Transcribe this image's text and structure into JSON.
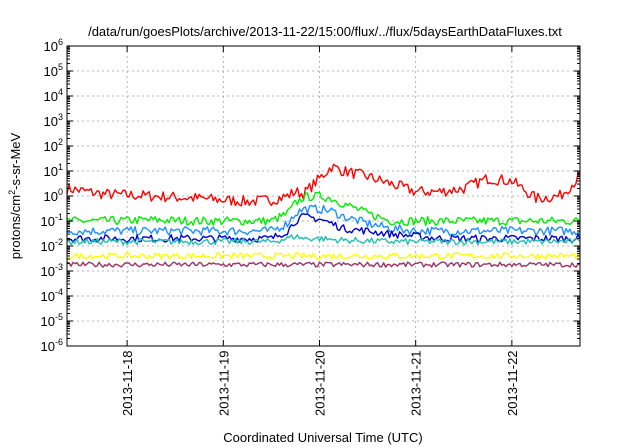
{
  "chart_data": {
    "type": "line",
    "title": "/data/run/goesPlots/archive/2013-11-22/15:00/flux/../flux/5daysEarthDataFluxes.txt",
    "xlabel": "Coordinated Universal Time (UTC)",
    "ylabel": {
      "pre": "protons/cm",
      "sup": "2",
      "post": "-s-sr-MeV"
    },
    "y_scale": "log",
    "ylim_exponents": [
      -6,
      6
    ],
    "y_tick_labels": [
      {
        "base": "10",
        "exp": "6"
      },
      {
        "base": "10",
        "exp": "5"
      },
      {
        "base": "10",
        "exp": "4"
      },
      {
        "base": "10",
        "exp": "3"
      },
      {
        "base": "10",
        "exp": "2"
      },
      {
        "base": "10",
        "exp": "1"
      },
      {
        "base": "10",
        "exp": "0"
      },
      {
        "base": "10",
        "exp": "-1"
      },
      {
        "base": "10",
        "exp": "-2"
      },
      {
        "base": "10",
        "exp": "-3"
      },
      {
        "base": "10",
        "exp": "-4"
      },
      {
        "base": "10",
        "exp": "-5"
      },
      {
        "base": "10",
        "exp": "-6"
      }
    ],
    "xlim": [
      "2013-11-17 09:00",
      "2013-11-22 17:00"
    ],
    "x_ticks": [
      "2013-11-18",
      "2013-11-19",
      "2013-11-20",
      "2013-11-21",
      "2013-11-22"
    ],
    "grid": true,
    "x": [
      "2013-11-17 09:00",
      "2013-11-17 18:00",
      "2013-11-18 06:00",
      "2013-11-18 18:00",
      "2013-11-19 06:00",
      "2013-11-19 12:00",
      "2013-11-19 16:00",
      "2013-11-19 18:00",
      "2013-11-19 20:00",
      "2013-11-20 00:00",
      "2013-11-20 03:00",
      "2013-11-20 06:00",
      "2013-11-20 12:00",
      "2013-11-20 18:00",
      "2013-11-21 00:00",
      "2013-11-21 06:00",
      "2013-11-21 12:00",
      "2013-11-21 18:00",
      "2013-11-22 00:00",
      "2013-11-22 06:00",
      "2013-11-22 12:00",
      "2013-11-22 17:00"
    ],
    "series": [
      {
        "color": "#ff0000",
        "values": [
          2,
          1.2,
          1,
          0.8,
          0.6,
          0.7,
          1.0,
          1.5,
          1.2,
          5,
          15,
          10,
          6,
          3,
          1.5,
          1.5,
          2,
          5,
          4,
          0.8,
          1,
          6
        ]
      },
      {
        "color": "#00ee00",
        "values": [
          0.1,
          0.1,
          0.11,
          0.1,
          0.1,
          0.1,
          0.2,
          0.5,
          0.9,
          1,
          0.8,
          0.5,
          0.2,
          0.1,
          0.1,
          0.1,
          0.1,
          0.1,
          0.1,
          0.1,
          0.1,
          0.1
        ]
      },
      {
        "color": "#1e90ff",
        "values": [
          0.04,
          0.04,
          0.04,
          0.04,
          0.04,
          0.04,
          0.08,
          0.2,
          0.3,
          0.3,
          0.25,
          0.15,
          0.08,
          0.05,
          0.04,
          0.04,
          0.04,
          0.04,
          0.04,
          0.04,
          0.04,
          0.04
        ]
      },
      {
        "color": "#0000cc",
        "values": [
          0.02,
          0.02,
          0.02,
          0.02,
          0.02,
          0.02,
          0.04,
          0.1,
          0.15,
          0.12,
          0.08,
          0.05,
          0.04,
          0.03,
          0.025,
          0.02,
          0.02,
          0.02,
          0.02,
          0.02,
          0.02,
          0.02
        ]
      },
      {
        "color": "#20c0b0",
        "values": [
          0.015,
          0.015,
          0.015,
          0.015,
          0.015,
          0.015,
          0.02,
          0.025,
          0.02,
          0.02,
          0.018,
          0.017,
          0.016,
          0.015,
          0.015,
          0.015,
          0.015,
          0.015,
          0.015,
          0.015,
          0.015,
          0.015
        ]
      },
      {
        "color": "#ffff00",
        "values": [
          0.004,
          0.004,
          0.004,
          0.004,
          0.004,
          0.004,
          0.004,
          0.004,
          0.004,
          0.004,
          0.004,
          0.004,
          0.004,
          0.004,
          0.004,
          0.004,
          0.004,
          0.004,
          0.004,
          0.004,
          0.004,
          0.004
        ]
      },
      {
        "color": "#993366",
        "values": [
          0.0018,
          0.0018,
          0.0018,
          0.0018,
          0.0018,
          0.0018,
          0.0018,
          0.0018,
          0.0018,
          0.0018,
          0.0018,
          0.0018,
          0.0018,
          0.0018,
          0.0018,
          0.0018,
          0.0018,
          0.0018,
          0.0018,
          0.0018,
          0.0018,
          0.0018
        ]
      }
    ]
  }
}
